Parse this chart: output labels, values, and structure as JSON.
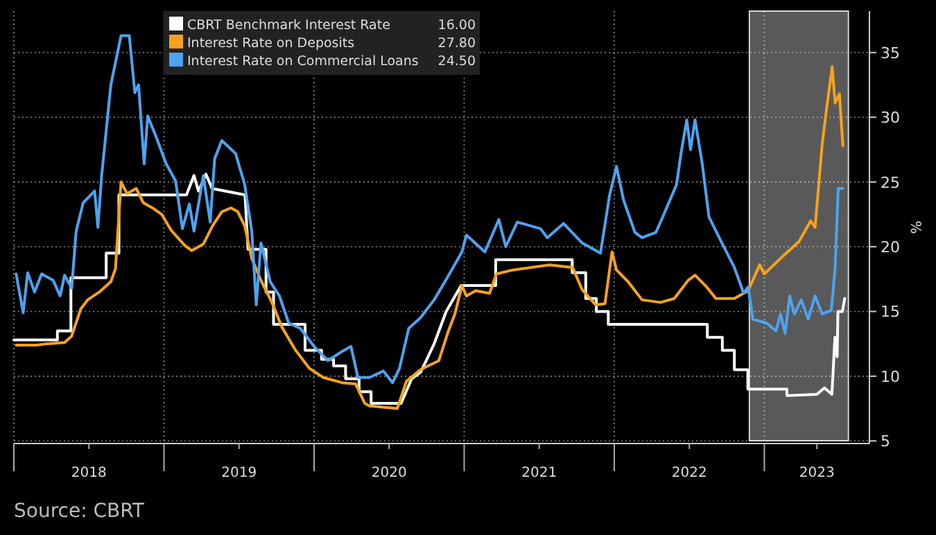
{
  "chart_data": {
    "type": "line",
    "legend": "top",
    "grid": true,
    "ylabel": "%",
    "annotations": [
      "Source: CBRT",
      "16.00",
      "27.80",
      "24.50"
    ],
    "xlim": [
      2018.0,
      2023.7
    ],
    "ylim": [
      4.8,
      38.2
    ],
    "xticks": [
      {
        "value": 2018,
        "label": null
      },
      {
        "value": 2018.5,
        "label": "2018"
      },
      {
        "value": 2019,
        "label": null
      },
      {
        "value": 2019.5,
        "label": "2019"
      },
      {
        "value": 2020,
        "label": null
      },
      {
        "value": 2020.5,
        "label": "2020"
      },
      {
        "value": 2021,
        "label": null
      },
      {
        "value": 2021.5,
        "label": "2021"
      },
      {
        "value": 2022,
        "label": null
      },
      {
        "value": 2022.5,
        "label": "2022"
      },
      {
        "value": 2023,
        "label": null
      },
      {
        "value": 2023.35,
        "label": "2023"
      }
    ],
    "yticks": [
      5,
      10,
      15,
      20,
      25,
      30,
      35
    ],
    "bands": [
      {
        "axis": "x",
        "from": 2022.9,
        "to": 2023.56,
        "color": "#ffffff"
      }
    ],
    "series": [
      {
        "name": "CBRT Benchmark Interest Rate",
        "color": "#ffffff",
        "x": [
          2018.0,
          2018.29,
          2018.29,
          2018.38,
          2018.38,
          2018.615,
          2018.615,
          2018.7,
          2018.7,
          2019.15,
          2019.2,
          2019.23,
          2019.28,
          2019.32,
          2019.54,
          2019.56,
          2019.68,
          2019.68,
          2019.73,
          2019.73,
          2019.94,
          2019.94,
          2020.05,
          2020.05,
          2020.13,
          2020.13,
          2020.21,
          2020.21,
          2020.3,
          2020.3,
          2020.38,
          2020.38,
          2020.58,
          2020.65,
          2020.71,
          2020.8,
          2020.88,
          2020.98,
          2021.21,
          2021.21,
          2021.72,
          2021.72,
          2021.81,
          2021.81,
          2021.88,
          2021.88,
          2021.96,
          2021.96,
          2022.62,
          2022.62,
          2022.72,
          2022.72,
          2022.8,
          2022.8,
          2022.89,
          2022.89,
          2023.15,
          2023.15,
          2023.35,
          2023.4,
          2023.45,
          2023.47,
          2023.485,
          2023.49,
          2023.52,
          2023.535
        ],
        "values": [
          12.8,
          12.8,
          13.5,
          13.5,
          17.6,
          17.6,
          19.5,
          19.5,
          24,
          24,
          25.5,
          24.3,
          25.6,
          24.5,
          24,
          19.8,
          19.8,
          16.5,
          16.5,
          14,
          14,
          12,
          12,
          11.3,
          11.3,
          10.8,
          10.8,
          9.8,
          9.8,
          8.8,
          8.8,
          7.9,
          7.9,
          9.8,
          10.3,
          12.5,
          15,
          17,
          17,
          19,
          19,
          18,
          18,
          16,
          16,
          15,
          15,
          14,
          14,
          13,
          13,
          12,
          12,
          10.5,
          10.5,
          9,
          9,
          8.5,
          8.6,
          9.1,
          8.6,
          13,
          11.5,
          15,
          15,
          16
        ]
      },
      {
        "name": "Interest Rate on Deposits",
        "color": "#f7a21b",
        "x": [
          2018.015,
          2018.154,
          2018.215,
          2018.338,
          2018.385,
          2018.446,
          2018.492,
          2018.569,
          2018.646,
          2018.677,
          2018.714,
          2018.754,
          2018.815,
          2018.862,
          2018.923,
          2018.985,
          2019.046,
          2019.138,
          2019.185,
          2019.262,
          2019.323,
          2019.385,
          2019.446,
          2019.492,
          2019.538,
          2019.585,
          2019.646,
          2019.723,
          2019.785,
          2019.877,
          2019.969,
          2020.062,
          2020.185,
          2020.277,
          2020.338,
          2020.369,
          2020.554,
          2020.615,
          2020.708,
          2020.831,
          2020.892,
          2020.938,
          2020.985,
          2021.015,
          2021.077,
          2021.169,
          2021.215,
          2021.323,
          2021.569,
          2021.723,
          2021.785,
          2021.877,
          2021.938,
          2021.985,
          2022.015,
          2022.092,
          2022.185,
          2022.308,
          2022.4,
          2022.492,
          2022.538,
          2022.615,
          2022.677,
          2022.8,
          2022.892,
          2022.969,
          2023.0,
          2023.108,
          2023.231,
          2023.308,
          2023.338,
          2023.385,
          2023.415,
          2023.452,
          2023.471,
          2023.5,
          2023.523
        ],
        "values": [
          12.4,
          12.4,
          12.5,
          12.6,
          13.1,
          15.2,
          15.9,
          16.5,
          17.3,
          18.3,
          25.0,
          24.1,
          24.5,
          23.4,
          23.0,
          22.5,
          21.3,
          20.1,
          19.7,
          20.2,
          21.6,
          22.7,
          23.0,
          22.7,
          21.6,
          19.1,
          17.4,
          15.6,
          13.8,
          12.0,
          10.6,
          9.9,
          9.5,
          9.4,
          7.9,
          7.7,
          7.5,
          9.6,
          10.5,
          11.2,
          13.4,
          14.8,
          17.0,
          16.2,
          16.6,
          16.4,
          17.9,
          18.2,
          18.6,
          18.4,
          16.7,
          15.5,
          15.6,
          19.6,
          18.2,
          17.3,
          15.9,
          15.7,
          16.0,
          17.4,
          17.8,
          16.9,
          16.0,
          16.0,
          16.6,
          18.6,
          17.9,
          19.1,
          20.4,
          22.0,
          21.5,
          27.9,
          30.7,
          33.9,
          31.1,
          31.8,
          27.8
        ]
      },
      {
        "name": "Interest Rate on Commercial Loans",
        "color": "#4da3f0",
        "x": [
          2018.015,
          2018.062,
          2018.092,
          2018.138,
          2018.185,
          2018.262,
          2018.308,
          2018.338,
          2018.385,
          2018.415,
          2018.462,
          2018.538,
          2018.56,
          2018.585,
          2018.646,
          2018.714,
          2018.769,
          2018.806,
          2018.831,
          2018.868,
          2018.892,
          2018.954,
          2019.015,
          2019.077,
          2019.123,
          2019.169,
          2019.2,
          2019.262,
          2019.308,
          2019.338,
          2019.385,
          2019.477,
          2019.538,
          2019.585,
          2019.615,
          2019.646,
          2019.708,
          2019.769,
          2019.831,
          2019.908,
          2020.0,
          2020.092,
          2020.185,
          2020.246,
          2020.292,
          2020.369,
          2020.462,
          2020.523,
          2020.569,
          2020.631,
          2020.708,
          2020.8,
          2020.892,
          2020.985,
          2021.015,
          2021.138,
          2021.231,
          2021.277,
          2021.354,
          2021.508,
          2021.554,
          2021.662,
          2021.785,
          2021.908,
          2021.969,
          2022.015,
          2022.062,
          2022.138,
          2022.185,
          2022.277,
          2022.323,
          2022.415,
          2022.446,
          2022.483,
          2022.508,
          2022.538,
          2022.585,
          2022.631,
          2022.708,
          2022.8,
          2022.862,
          2022.892,
          2022.923,
          2023.015,
          2023.077,
          2023.108,
          2023.138,
          2023.169,
          2023.2,
          2023.246,
          2023.292,
          2023.338,
          2023.385,
          2023.446,
          2023.471,
          2023.492,
          2023.523
        ],
        "values": [
          17.9,
          14.9,
          18.0,
          16.5,
          17.9,
          17.4,
          16.2,
          17.8,
          16.8,
          21.2,
          23.4,
          24.3,
          21.5,
          25.5,
          32.5,
          36.3,
          36.3,
          31.9,
          32.5,
          26.4,
          30.1,
          28.3,
          26.4,
          25.1,
          21.4,
          23.3,
          21.2,
          25.5,
          21.9,
          26.8,
          28.2,
          27.2,
          24.8,
          21.2,
          15.5,
          20.3,
          17.3,
          16.2,
          14.1,
          13.7,
          12.3,
          11.2,
          11.9,
          12.3,
          9.9,
          9.9,
          10.4,
          9.5,
          10.6,
          13.7,
          14.5,
          15.9,
          17.7,
          19.6,
          20.9,
          19.6,
          22.1,
          20.0,
          21.9,
          21.4,
          20.7,
          21.8,
          20.3,
          19.5,
          24.0,
          26.2,
          23.6,
          21.1,
          20.7,
          21.1,
          22.3,
          24.8,
          27.3,
          29.8,
          27.5,
          29.8,
          26.5,
          22.3,
          20.5,
          18.4,
          16.4,
          16.9,
          14.4,
          14.1,
          13.5,
          14.8,
          13.3,
          16.2,
          14.8,
          15.9,
          14.4,
          16.2,
          14.8,
          15.1,
          18.3,
          24.5,
          24.5
        ]
      }
    ]
  }
}
